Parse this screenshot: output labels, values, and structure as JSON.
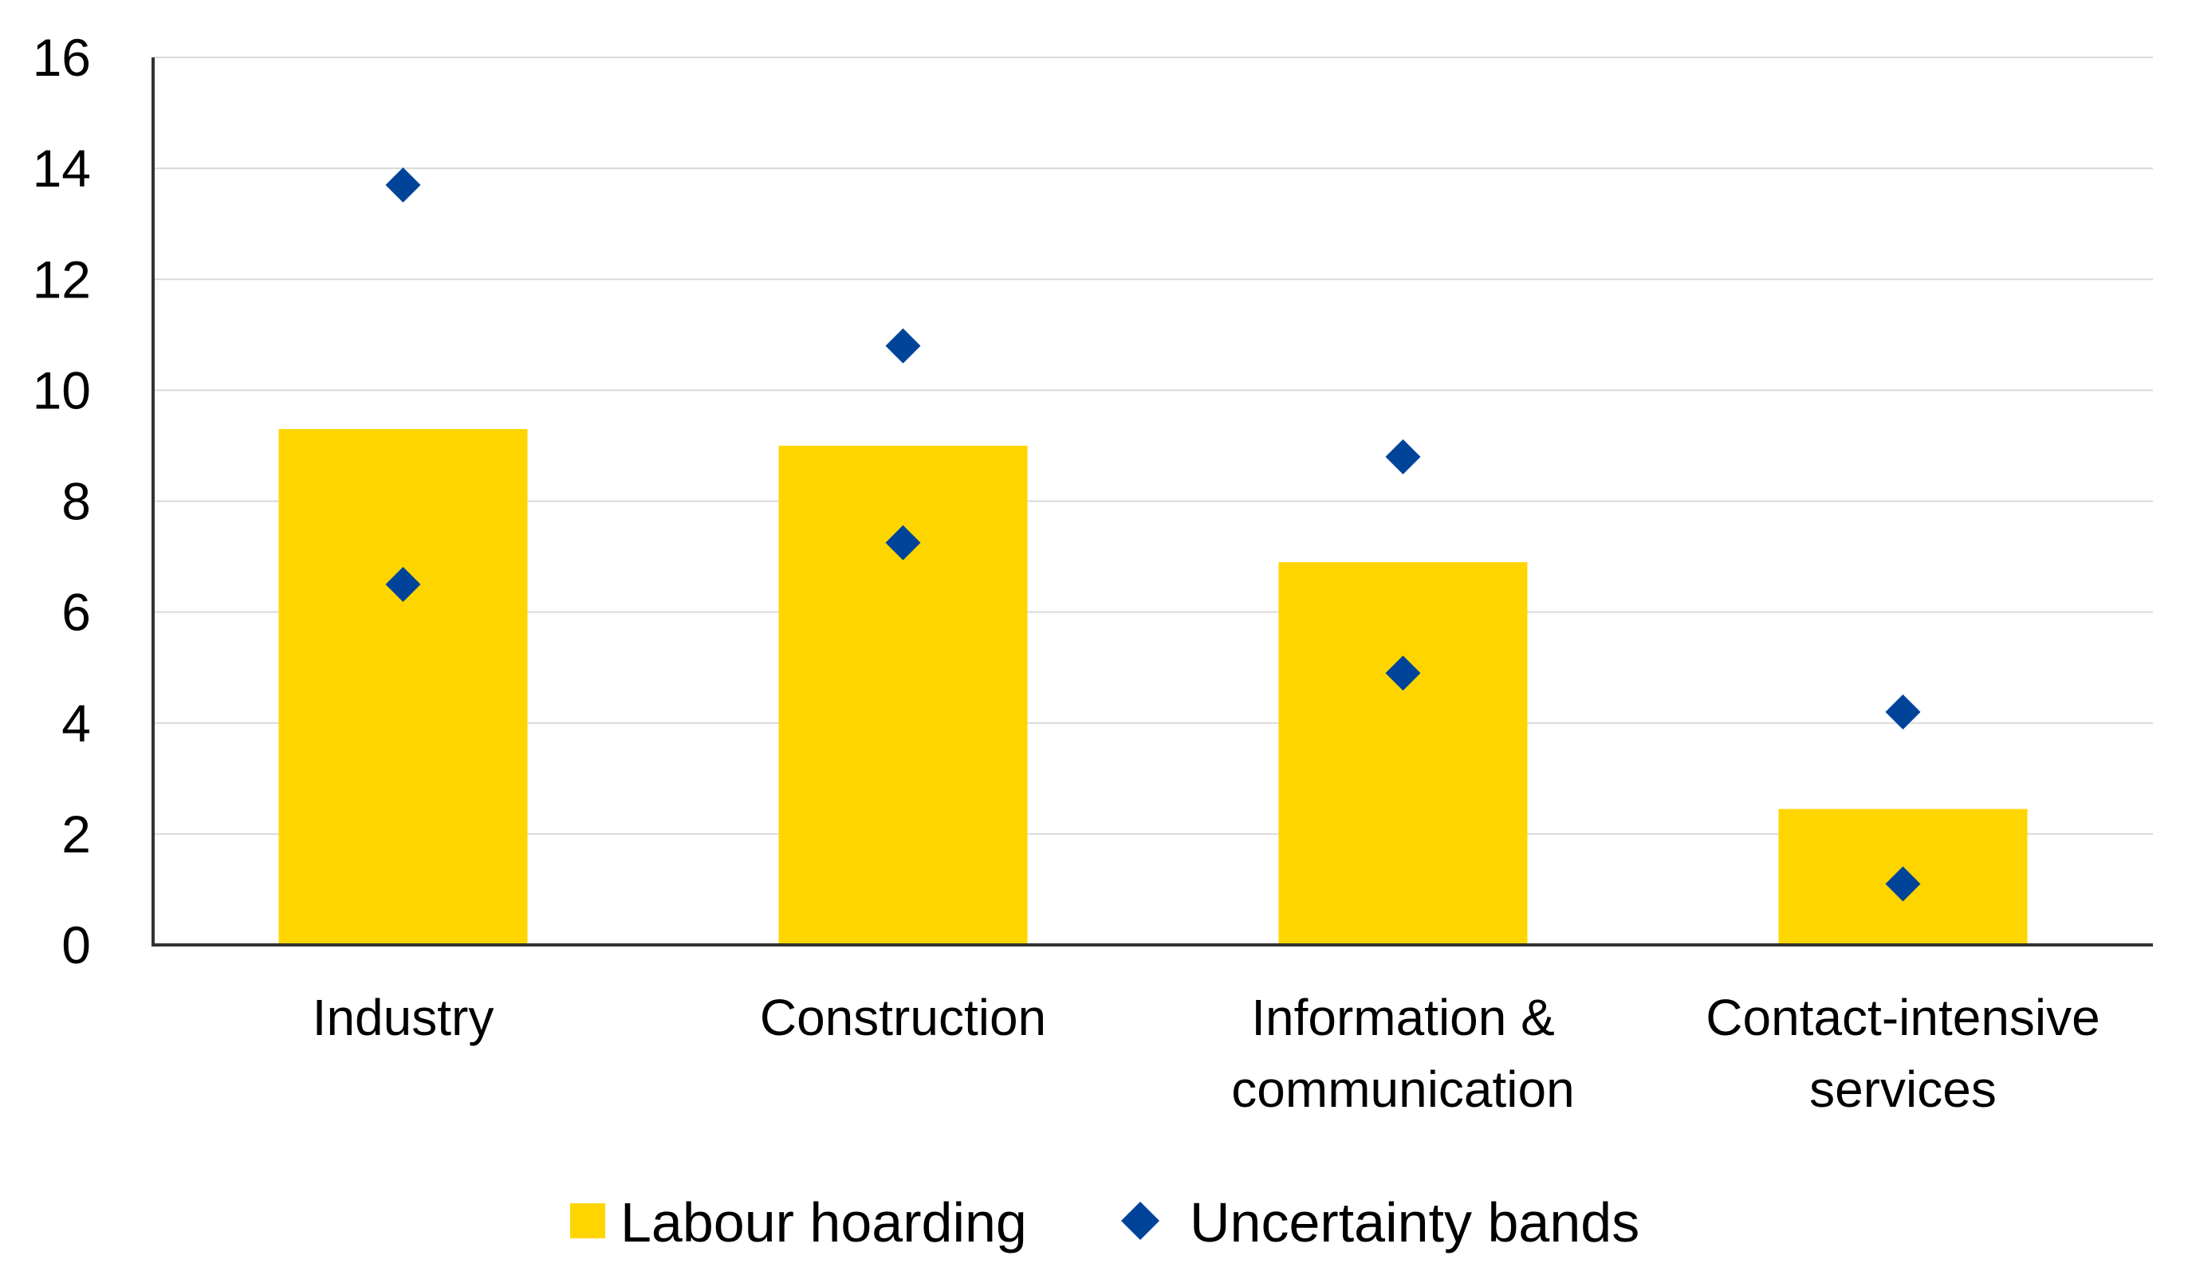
{
  "chart_data": {
    "type": "bar",
    "categories": [
      [
        "Industry"
      ],
      [
        "Construction"
      ],
      [
        "Information &",
        "communication"
      ],
      [
        "Contact-intensive",
        "services"
      ]
    ],
    "series": [
      {
        "name": "Labour hoarding",
        "kind": "bar",
        "color": "#FFD500",
        "values": [
          9.3,
          9.0,
          6.9,
          2.45
        ]
      },
      {
        "name": "Uncertainty bands",
        "kind": "marker",
        "marker": "diamond",
        "color": "#00449A",
        "upper": [
          13.7,
          10.8,
          8.8,
          4.2
        ],
        "lower": [
          6.5,
          7.25,
          4.9,
          1.1
        ]
      }
    ],
    "ylim": [
      0,
      16
    ],
    "yticks": [
      0,
      2,
      4,
      6,
      8,
      10,
      12,
      14,
      16
    ],
    "grid": true,
    "legend": "bottom",
    "title": "",
    "xlabel": "",
    "ylabel": "",
    "colors": {
      "grid": "#D9D9D9",
      "axis": "#333333"
    }
  }
}
